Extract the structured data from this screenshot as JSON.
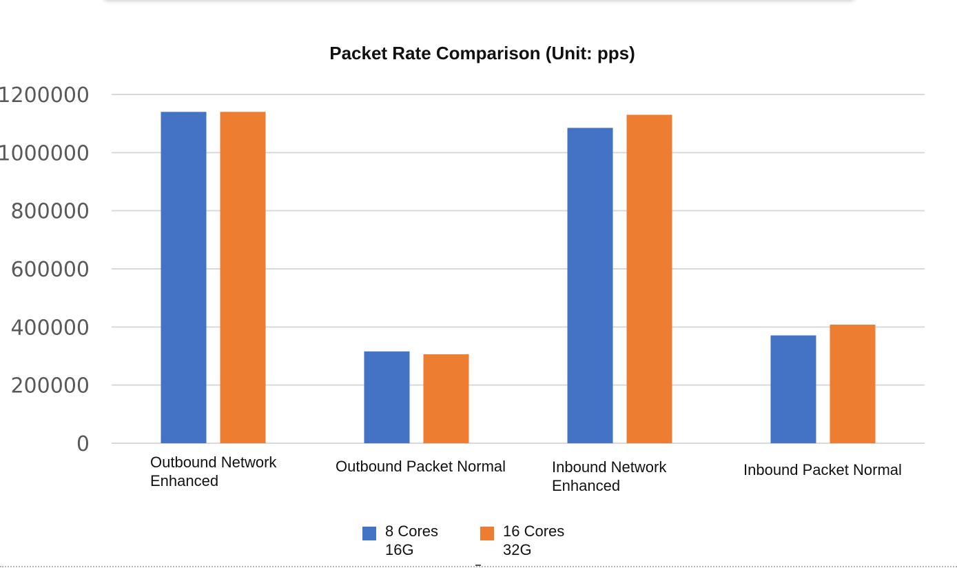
{
  "chart_data": {
    "type": "bar",
    "title": "Packet Rate Comparison (Unit: pps)",
    "xlabel": "",
    "ylabel": "",
    "categories": [
      [
        "Outbound Network",
        "Enhanced"
      ],
      [
        "Outbound Packet Normal"
      ],
      [
        "Inbound Network",
        "Enhanced"
      ],
      [
        "Inbound Packet Normal"
      ]
    ],
    "series": [
      {
        "name": [
          "8 Cores",
          "16G"
        ],
        "color": "#4472c4",
        "values": [
          1140000,
          316000,
          1085000,
          371000
        ]
      },
      {
        "name": [
          "16 Cores",
          "32G"
        ],
        "color": "#ed7d31",
        "values": [
          1140000,
          306000,
          1130000,
          408000
        ]
      }
    ],
    "ylim": [
      0,
      1200000
    ],
    "yticks": [
      "0",
      "200000",
      "400000",
      "600000",
      "800000",
      "1000000",
      "1200000"
    ],
    "grid": true,
    "gridColor": "#d9d9d9",
    "legend": "bottom-center"
  }
}
